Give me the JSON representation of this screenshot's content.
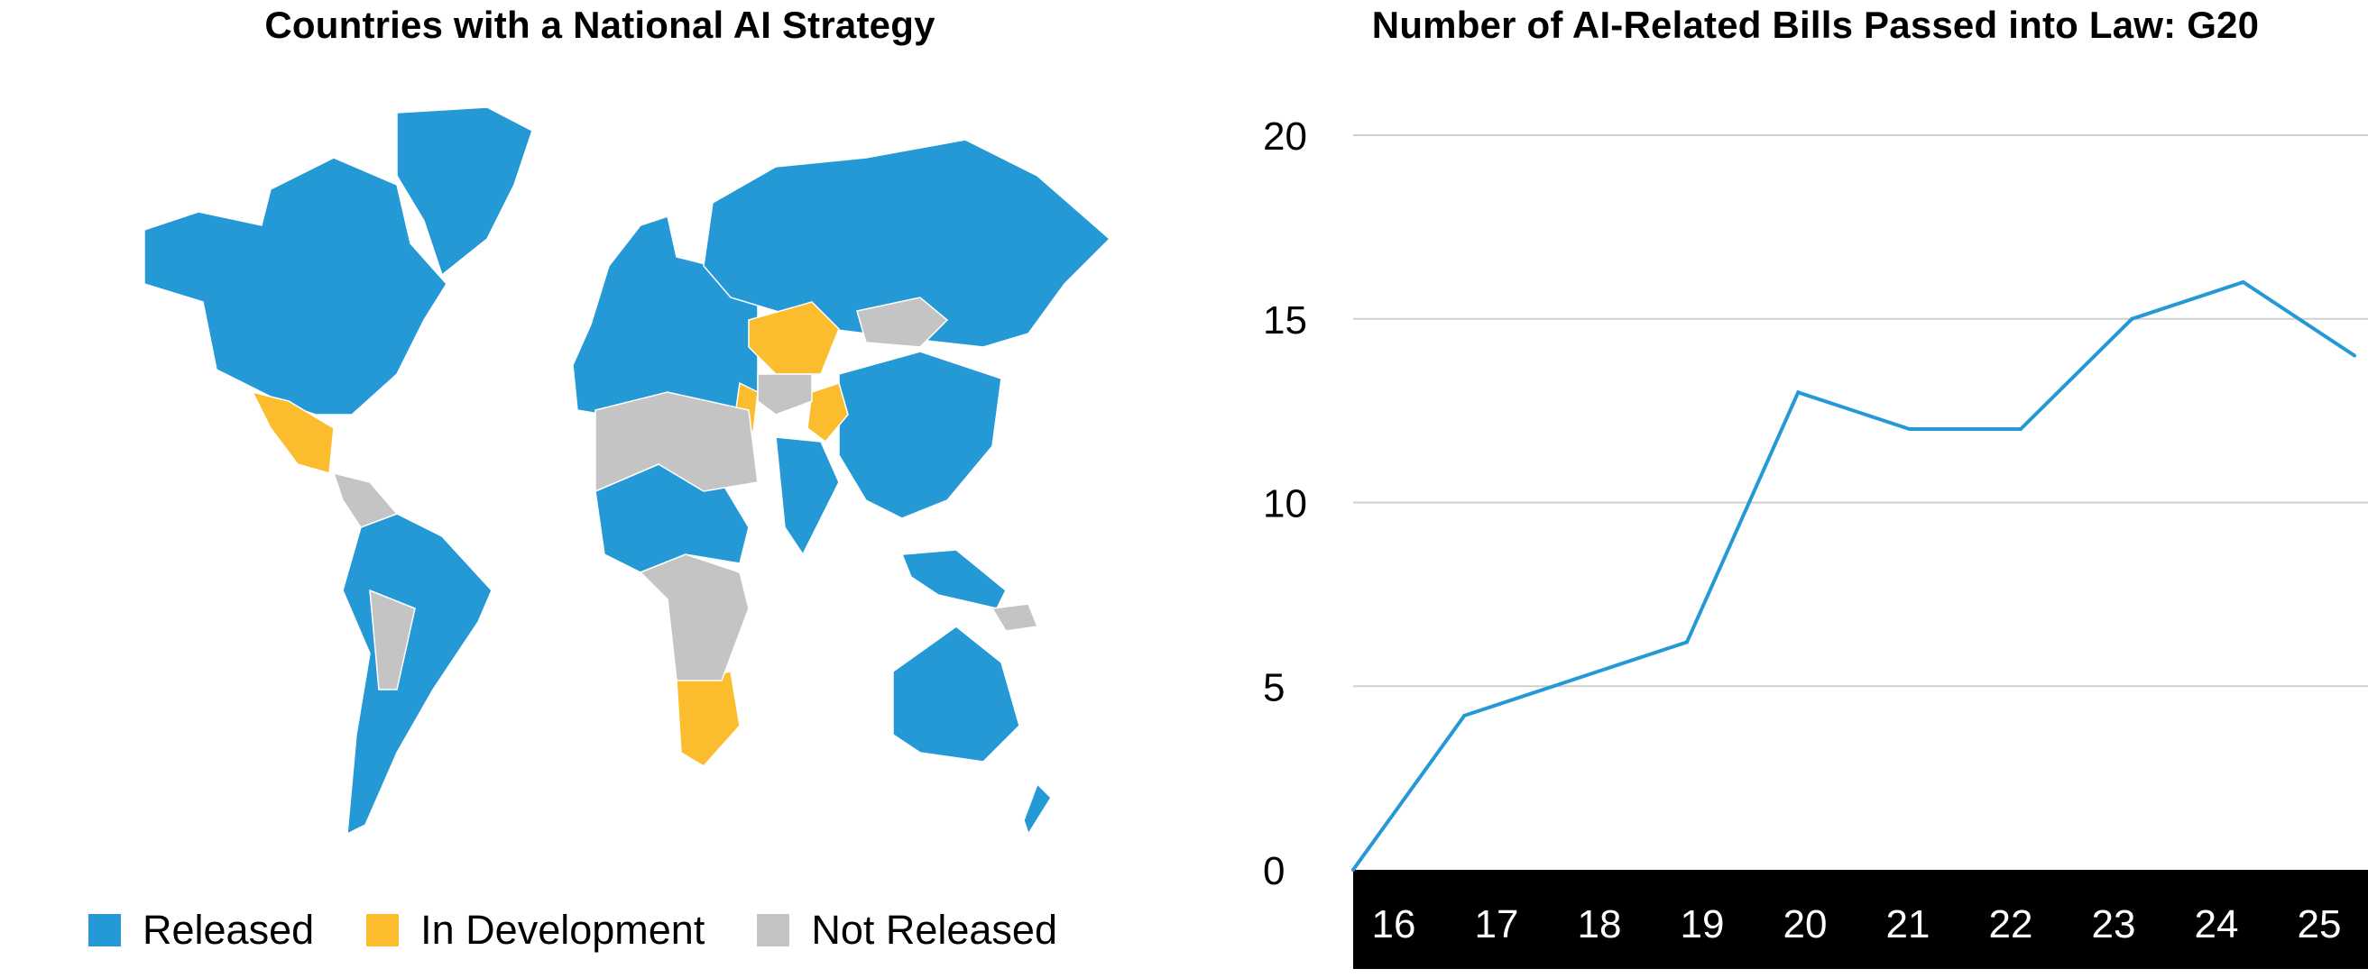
{
  "colors": {
    "released": "#2499d6",
    "in_development": "#fbbd2e",
    "not_released": "#c4c4c4",
    "line": "#2499d6",
    "grid": "#cfcfcf",
    "axis_band": "#000000"
  },
  "map": {
    "title": "Countries with a National AI Strategy",
    "legend": [
      {
        "label": "Released",
        "color": "#2499d6"
      },
      {
        "label": "In Development",
        "color": "#fbbd2e"
      },
      {
        "label": "Not Released",
        "color": "#c4c4c4"
      }
    ]
  },
  "chart_data": {
    "type": "line",
    "title": "Number of AI-Related Bills Passed into Law: G20",
    "xlabel": "",
    "ylabel": "",
    "categories": [
      "16",
      "17",
      "18",
      "19",
      "20",
      "21",
      "22",
      "23",
      "24",
      "25"
    ],
    "series": [
      {
        "values": [
          0,
          4.2,
          5.2,
          6.2,
          13,
          12,
          12,
          15,
          16,
          14
        ]
      }
    ],
    "yticks": [
      0,
      5,
      10,
      15,
      20
    ],
    "ylim": [
      0,
      20
    ],
    "grid": true,
    "x_axis_style": "white labels on black band"
  }
}
